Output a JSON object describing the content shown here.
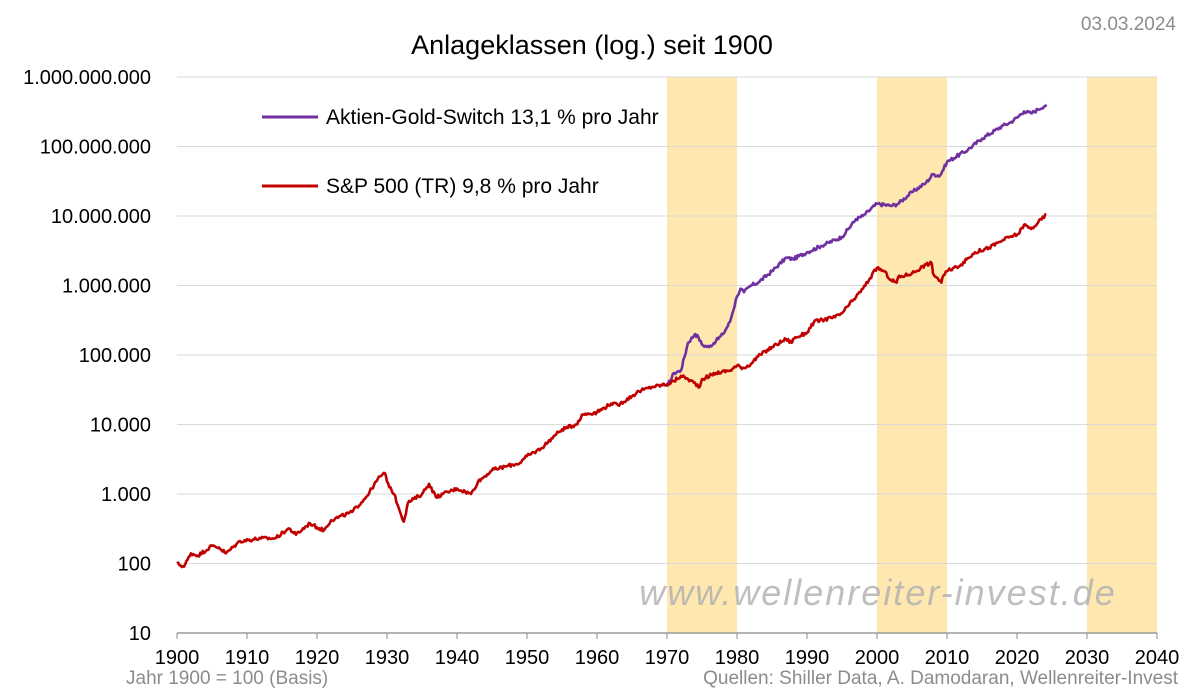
{
  "date": "03.03.2024",
  "footer_left": "Jahr 1900 = 100 (Basis)",
  "footer_right": "Quellen: Shiller Data, A. Damodaran, Wellenreiter-Invest",
  "watermark": "www.wellenreiter-invest.de",
  "chart_data": {
    "type": "line",
    "title": "Anlageklassen (log.) seit 1900",
    "xlabel": "",
    "ylabel": "",
    "y_scale": "log",
    "xlim": [
      1900,
      2040
    ],
    "ylim": [
      10,
      1000000000
    ],
    "x_ticks": [
      "1900",
      "1910",
      "1920",
      "1930",
      "1940",
      "1950",
      "1960",
      "1970",
      "1980",
      "1990",
      "2000",
      "2010",
      "2020",
      "2030",
      "2040"
    ],
    "y_ticks": [
      "1.000.000.000",
      "100.000.000",
      "10.000.000",
      "1.000.000",
      "100.000",
      "10.000",
      "1.000",
      "100",
      "10"
    ],
    "grid": "horizontal",
    "shaded_periods": [
      [
        1970,
        1980
      ],
      [
        2000,
        2010
      ],
      [
        2030,
        2040
      ]
    ],
    "series": [
      {
        "name": "Aktien-Gold-Switch 13,1 % pro Jahr",
        "color": "#7030a0",
        "x": [
          1970,
          1971,
          1972,
          1973,
          1974,
          1974.5,
          1975,
          1976,
          1977,
          1978,
          1979,
          1980,
          1980.5,
          1981,
          1982,
          1983,
          1985,
          1987,
          1988,
          1990,
          1992,
          1995,
          1997,
          1998,
          2000,
          2002,
          2003,
          2005,
          2007,
          2008,
          2009,
          2010,
          2013,
          2015,
          2018,
          2019,
          2020,
          2021,
          2022,
          2023,
          2024.2
        ],
        "values": [
          35000,
          55000,
          60000,
          150000,
          200000,
          180000,
          140000,
          130000,
          160000,
          200000,
          300000,
          700000,
          900000,
          800000,
          1000000,
          1100000,
          1600000,
          2500000,
          2400000,
          3000000,
          3700000,
          5000000,
          9000000,
          10000000,
          15000000,
          14000000,
          15000000,
          22000000,
          30000000,
          40000000,
          38000000,
          60000000,
          90000000,
          130000000,
          200000000,
          220000000,
          260000000,
          320000000,
          300000000,
          340000000,
          400000000
        ]
      },
      {
        "name": "S&P 500 (TR) 9,8 % pro Jahr",
        "color": "#c00000",
        "x": [
          1900,
          1901,
          1902,
          1903,
          1905,
          1906,
          1907,
          1909,
          1912,
          1914,
          1916,
          1917,
          1919,
          1920,
          1921,
          1922,
          1925,
          1927,
          1929,
          1929.7,
          1930,
          1931,
          1932.4,
          1933,
          1935,
          1936,
          1937,
          1938,
          1940,
          1942,
          1943,
          1945,
          1947,
          1949,
          1950,
          1952,
          1954,
          1955,
          1957,
          1958,
          1960,
          1962,
          1963,
          1966,
          1968,
          1970,
          1971,
          1972,
          1973,
          1974.7,
          1975,
          1977,
          1979,
          1980,
          1981,
          1982,
          1983,
          1985,
          1987,
          1987.8,
          1988,
          1990,
          1991,
          1994,
          1995,
          1998,
          2000,
          2001,
          2002,
          2002.8,
          2003,
          2005,
          2007,
          2007.8,
          2008,
          2009.2,
          2009.5,
          2010,
          2012,
          2014,
          2016,
          2018,
          2019,
          2020.2,
          2021,
          2022,
          2023,
          2024.2
        ],
        "values": [
          100,
          90,
          140,
          130,
          180,
          170,
          140,
          210,
          230,
          230,
          320,
          260,
          380,
          330,
          300,
          420,
          550,
          900,
          1800,
          2000,
          1500,
          1000,
          400,
          750,
          1000,
          1400,
          900,
          1000,
          1200,
          1000,
          1500,
          2200,
          2500,
          2800,
          3500,
          4500,
          7000,
          8500,
          10000,
          14000,
          15000,
          20000,
          19000,
          30000,
          35000,
          38000,
          42000,
          50000,
          45000,
          35000,
          45000,
          55000,
          60000,
          70000,
          65000,
          75000,
          95000,
          130000,
          170000,
          150000,
          170000,
          210000,
          300000,
          350000,
          400000,
          900000,
          1800000,
          1600000,
          1200000,
          1100000,
          1300000,
          1500000,
          2000000,
          2100000,
          1500000,
          1100000,
          1400000,
          1600000,
          2000000,
          3000000,
          3500000,
          4500000,
          5000000,
          5500000,
          7500000,
          6500000,
          8000000,
          10500000
        ]
      }
    ]
  }
}
